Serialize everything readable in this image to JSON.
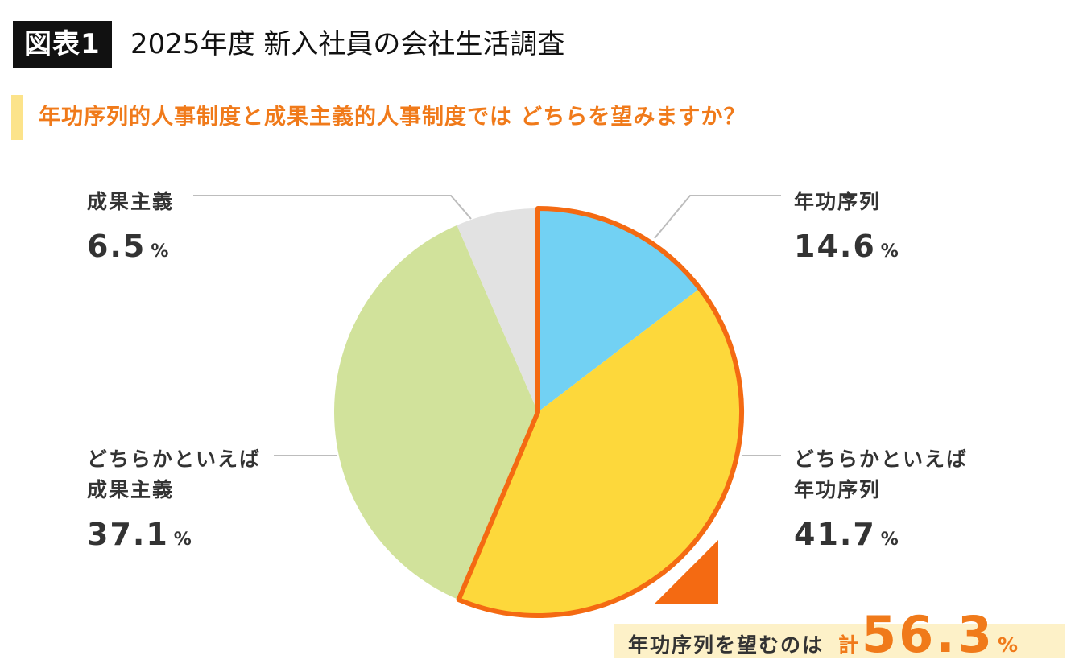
{
  "header": {
    "badge": "図表1",
    "title": "2025年度 新入社員の会社生活調査"
  },
  "question": "年功序列的人事制度と成果主義的人事制度では どちらを望みますか？",
  "chart_data": {
    "type": "pie",
    "slices": [
      {
        "label_lines": [
          "年功序列"
        ],
        "value": 14.6,
        "value_text": "14.6",
        "unit": "%",
        "color": "#72d1f3",
        "highlighted": true
      },
      {
        "label_lines": [
          "どちらかといえば",
          "年功序列"
        ],
        "value": 41.7,
        "value_text": "41.7",
        "unit": "%",
        "color": "#fdd83b",
        "highlighted": true
      },
      {
        "label_lines": [
          "どちらかといえば",
          "成果主義"
        ],
        "value": 37.1,
        "value_text": "37.1",
        "unit": "%",
        "color": "#d1e29b",
        "highlighted": false
      },
      {
        "label_lines": [
          "成果主義"
        ],
        "value": 6.5,
        "value_text": "6.5",
        "unit": "%",
        "color": "#e2e2e2",
        "highlighted": false
      }
    ],
    "highlight_color": "#f46a12",
    "summary": {
      "text": "年功序列を望むのは",
      "total_label": "計",
      "value": 56.3,
      "value_text": "56.3",
      "unit": "%"
    }
  }
}
